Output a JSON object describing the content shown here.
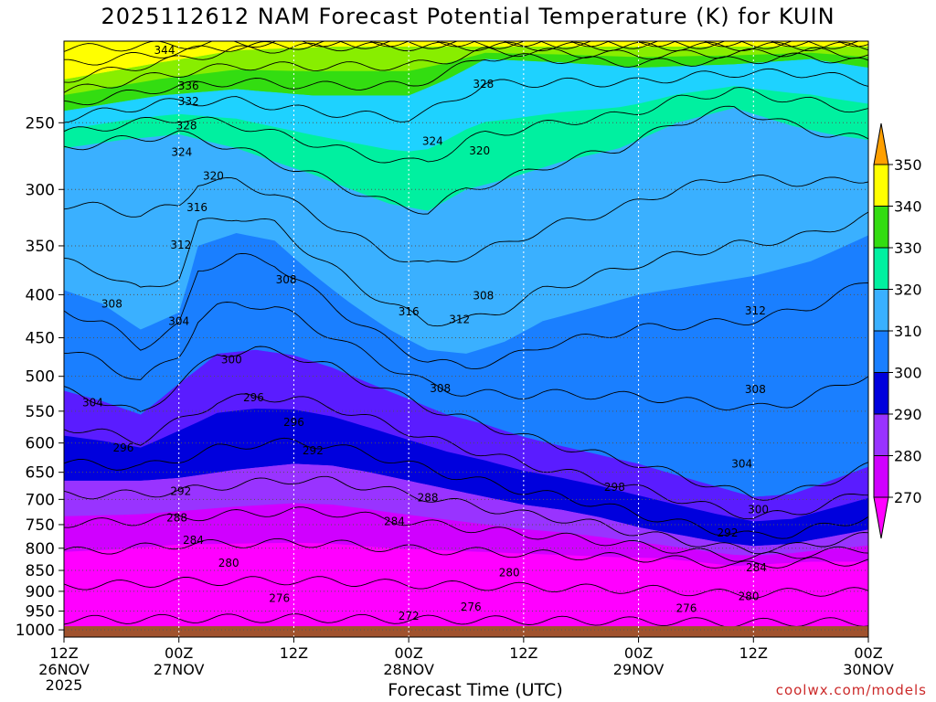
{
  "title": "2025112612 NAM Forecast Potential Temperature (K) for KUIN",
  "xlabel": "Forecast Time (UTC)",
  "credit": "coolwx.com/models",
  "colors": {
    "ground": "#a0522d",
    "levels": [
      "#ff00ff",
      "#d000ff",
      "#9933ff",
      "#5a1cff",
      "#0000dd",
      "#1a7fff",
      "#3ab0ff",
      "#1ed2ff",
      "#00f0a0",
      "#33dd11",
      "#88ee00",
      "#ffff00",
      "#ffa000"
    ]
  },
  "chart_data": {
    "type": "contour",
    "title": "2025112612 NAM Forecast Potential Temperature (K) for KUIN",
    "xlabel": "Forecast Time (UTC)",
    "ylabel": "",
    "x_ticks": [
      {
        "top": "12Z",
        "bottom": "26NOV",
        "year": "2025"
      },
      {
        "top": "00Z",
        "bottom": "27NOV"
      },
      {
        "top": "12Z",
        "bottom": ""
      },
      {
        "top": "00Z",
        "bottom": "28NOV"
      },
      {
        "top": "12Z",
        "bottom": ""
      },
      {
        "top": "00Z",
        "bottom": "29NOV"
      },
      {
        "top": "12Z",
        "bottom": ""
      },
      {
        "top": "00Z",
        "bottom": "30NOV"
      }
    ],
    "x_hours": [
      0,
      12,
      24,
      36,
      48,
      60,
      72,
      84
    ],
    "xlim": [
      0,
      84
    ],
    "y_ticks": [
      250,
      300,
      350,
      400,
      450,
      500,
      550,
      600,
      650,
      700,
      750,
      800,
      850,
      900,
      950,
      1000
    ],
    "ylim": [
      1020,
      200
    ],
    "y_scale": "log",
    "grid": true,
    "colorbar": {
      "labels": [
        350,
        340,
        330,
        320,
        310,
        300,
        290,
        280,
        270
      ],
      "bounds": [
        270,
        280,
        290,
        300,
        310,
        320,
        330,
        340,
        350
      ]
    },
    "contour_labels": [
      {
        "text": "344",
        "x": 10.5,
        "p": 205
      },
      {
        "text": "336",
        "x": 13,
        "p": 226
      },
      {
        "text": "332",
        "x": 13,
        "p": 236
      },
      {
        "text": "328",
        "x": 12.8,
        "p": 252
      },
      {
        "text": "324",
        "x": 12.3,
        "p": 271
      },
      {
        "text": "320",
        "x": 15.6,
        "p": 289
      },
      {
        "text": "316",
        "x": 13.9,
        "p": 315
      },
      {
        "text": "312",
        "x": 12.2,
        "p": 349
      },
      {
        "text": "308",
        "x": 5,
        "p": 410
      },
      {
        "text": "304",
        "x": 12,
        "p": 430
      },
      {
        "text": "300",
        "x": 17.5,
        "p": 478
      },
      {
        "text": "296",
        "x": 19.8,
        "p": 530
      },
      {
        "text": "292",
        "x": 26,
        "p": 613
      },
      {
        "text": "288",
        "x": 38,
        "p": 697
      },
      {
        "text": "284",
        "x": 34.5,
        "p": 744
      },
      {
        "text": "280",
        "x": 17.2,
        "p": 833
      },
      {
        "text": "276",
        "x": 22.5,
        "p": 917
      },
      {
        "text": "272",
        "x": 36,
        "p": 963
      },
      {
        "text": "308",
        "x": 23.2,
        "p": 384
      },
      {
        "text": "316",
        "x": 36,
        "p": 419
      },
      {
        "text": "312",
        "x": 41.3,
        "p": 428
      },
      {
        "text": "308",
        "x": 39.3,
        "p": 517
      },
      {
        "text": "324",
        "x": 38.5,
        "p": 263
      },
      {
        "text": "320",
        "x": 43.4,
        "p": 270
      },
      {
        "text": "328",
        "x": 43.8,
        "p": 225
      },
      {
        "text": "296",
        "x": 24,
        "p": 567
      },
      {
        "text": "292",
        "x": 12.2,
        "p": 685
      },
      {
        "text": "288",
        "x": 11.8,
        "p": 736
      },
      {
        "text": "284",
        "x": 13.5,
        "p": 783
      },
      {
        "text": "296",
        "x": 6.2,
        "p": 608
      },
      {
        "text": "304",
        "x": 3,
        "p": 537
      },
      {
        "text": "298",
        "x": 57.5,
        "p": 677
      },
      {
        "text": "304",
        "x": 70.8,
        "p": 635
      },
      {
        "text": "300",
        "x": 72.5,
        "p": 720
      },
      {
        "text": "292",
        "x": 69.3,
        "p": 767
      },
      {
        "text": "284",
        "x": 72.3,
        "p": 844
      },
      {
        "text": "280",
        "x": 71.5,
        "p": 913
      },
      {
        "text": "276",
        "x": 65,
        "p": 943
      },
      {
        "text": "280",
        "x": 46.5,
        "p": 855
      },
      {
        "text": "276",
        "x": 42.5,
        "p": 939
      },
      {
        "text": "312",
        "x": 72.2,
        "p": 418
      },
      {
        "text": "308",
        "x": 72.2,
        "p": 518
      },
      {
        "text": "308",
        "x": 43.8,
        "p": 401
      }
    ]
  }
}
